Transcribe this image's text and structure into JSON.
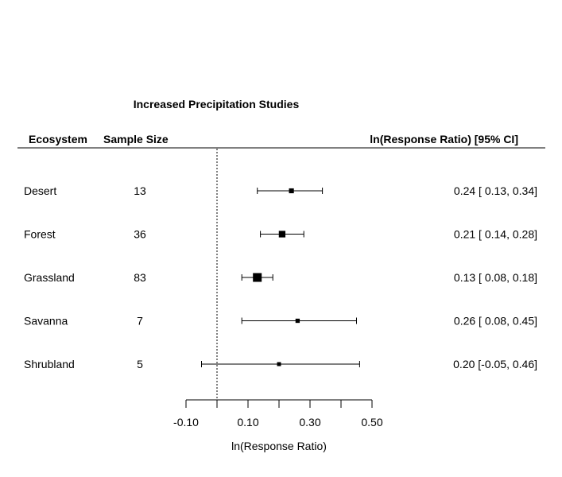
{
  "chart_data": {
    "type": "forest",
    "title": "Increased Precipitation Studies",
    "column_headers": {
      "ecosystem": "Ecosystem",
      "sample_size": "Sample Size",
      "effect": "ln(Response Ratio) [95% CI]"
    },
    "rows": [
      {
        "ecosystem": "Desert",
        "n": "13",
        "estimate": 0.24,
        "lower": 0.13,
        "upper": 0.34,
        "label": "0.24 [ 0.13, 0.34]"
      },
      {
        "ecosystem": "Forest",
        "n": "36",
        "estimate": 0.21,
        "lower": 0.14,
        "upper": 0.28,
        "label": "0.21 [ 0.14, 0.28]"
      },
      {
        "ecosystem": "Grassland",
        "n": "83",
        "estimate": 0.13,
        "lower": 0.08,
        "upper": 0.18,
        "label": "0.13 [ 0.08, 0.18]"
      },
      {
        "ecosystem": "Savanna",
        "n": "7",
        "estimate": 0.26,
        "lower": 0.08,
        "upper": 0.45,
        "label": "0.26 [ 0.08, 0.45]"
      },
      {
        "ecosystem": "Shrubland",
        "n": "5",
        "estimate": 0.2,
        "lower": -0.05,
        "upper": 0.46,
        "label": "0.20 [-0.05, 0.46]"
      }
    ],
    "xlabel": "ln(Response Ratio)",
    "x_ticks": [
      -0.1,
      0.0,
      0.1,
      0.2,
      0.3,
      0.4,
      0.5
    ],
    "x_tick_labels": [
      "-0.10",
      "",
      "0.10",
      "",
      "0.30",
      "",
      "0.50"
    ],
    "xlim": [
      -0.1,
      0.5
    ],
    "reference_line": 0
  }
}
